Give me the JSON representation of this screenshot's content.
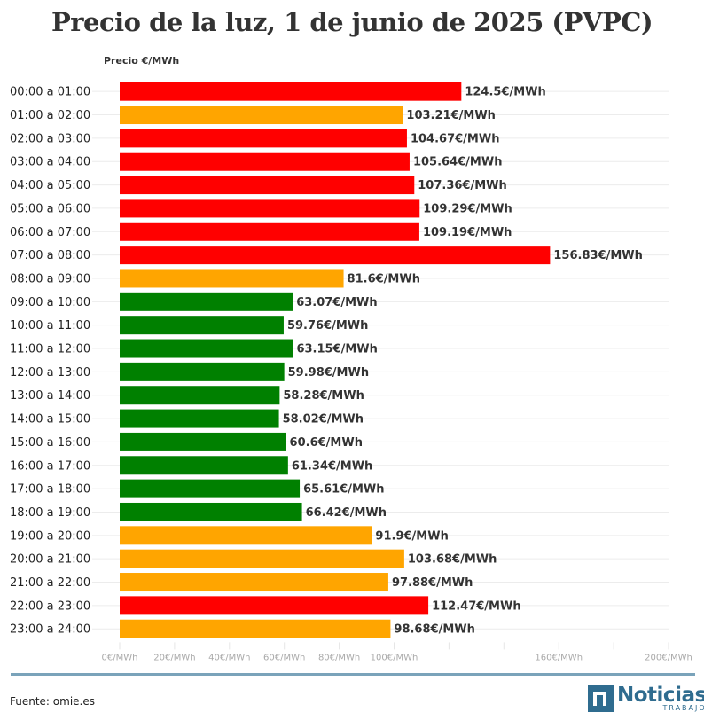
{
  "chart_data": {
    "type": "bar",
    "orientation": "horizontal",
    "title": "Precio de la luz, 1 de junio de 2025 (PVPC)",
    "ylabel": "Precio €/MWh",
    "xlabel": "",
    "xlim": [
      0,
      200
    ],
    "grid": true,
    "categories": [
      "00:00 a 01:00",
      "01:00 a 02:00",
      "02:00 a 03:00",
      "03:00 a 04:00",
      "04:00 a 05:00",
      "05:00 a 06:00",
      "06:00 a 07:00",
      "07:00 a 08:00",
      "08:00 a 09:00",
      "09:00 a 10:00",
      "10:00 a 11:00",
      "11:00 a 12:00",
      "12:00 a 13:00",
      "13:00 a 14:00",
      "14:00 a 15:00",
      "15:00 a 16:00",
      "16:00 a 17:00",
      "17:00 a 18:00",
      "18:00 a 19:00",
      "19:00 a 20:00",
      "20:00 a 21:00",
      "21:00 a 22:00",
      "22:00 a 23:00",
      "23:00 a 24:00"
    ],
    "values": [
      124.5,
      103.21,
      104.67,
      105.64,
      107.36,
      109.29,
      109.19,
      156.83,
      81.6,
      63.07,
      59.76,
      63.15,
      59.98,
      58.28,
      58.02,
      60.6,
      61.34,
      65.61,
      66.42,
      91.9,
      103.68,
      97.88,
      112.47,
      98.68
    ],
    "value_labels": [
      "124.5€/MWh",
      "103.21€/MWh",
      "104.67€/MWh",
      "105.64€/MWh",
      "107.36€/MWh",
      "109.29€/MWh",
      "109.19€/MWh",
      "156.83€/MWh",
      "81.6€/MWh",
      "63.07€/MWh",
      "59.76€/MWh",
      "63.15€/MWh",
      "59.98€/MWh",
      "58.28€/MWh",
      "58.02€/MWh",
      "60.6€/MWh",
      "61.34€/MWh",
      "65.61€/MWh",
      "66.42€/MWh",
      "91.9€/MWh",
      "103.68€/MWh",
      "97.88€/MWh",
      "112.47€/MWh",
      "98.68€/MWh"
    ],
    "bar_colors": [
      "#ff0000",
      "#ffa500",
      "#ff0000",
      "#ff0000",
      "#ff0000",
      "#ff0000",
      "#ff0000",
      "#ff0000",
      "#ffa500",
      "#008000",
      "#008000",
      "#008000",
      "#008000",
      "#008000",
      "#008000",
      "#008000",
      "#008000",
      "#008000",
      "#008000",
      "#ffa500",
      "#ffa500",
      "#ffa500",
      "#ff0000",
      "#ffa500"
    ],
    "x_ticks": [
      {
        "value": 0,
        "label": "0€/MWh"
      },
      {
        "value": 20,
        "label": "20€/MWh"
      },
      {
        "value": 40,
        "label": "40€/MWh"
      },
      {
        "value": 60,
        "label": "60€/MWh"
      },
      {
        "value": 80,
        "label": "80€/MWh"
      },
      {
        "value": 100,
        "label": "100€/MWh"
      },
      {
        "value": 160,
        "label": "160€/MWh"
      },
      {
        "value": 200,
        "label": "200€/MWh"
      }
    ],
    "x_tick_marks": [
      0,
      20,
      40,
      60,
      80,
      100,
      120,
      140,
      160,
      180,
      200
    ]
  },
  "footer": {
    "source": "Fuente: omie.es",
    "logo_name": "Noticias",
    "logo_sub": "TRABAJO"
  },
  "colors": {
    "rule": "#7aa3ba",
    "brand": "#2f6c8f"
  }
}
